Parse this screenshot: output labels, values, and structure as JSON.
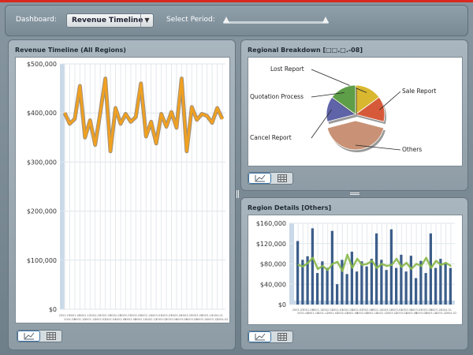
{
  "toolbar": {
    "dashboard_label": "Dashboard:",
    "dashboard_value": "Revenue Timeline",
    "period_label": "Select Period:",
    "period_range": [
      0.0,
      1.0
    ]
  },
  "panels": {
    "timeline_title": "Revenue Timeline (All Regions)",
    "breakdown_title": "Regional Breakdown [□□.□.-08]",
    "details_title": "Region Details [Others]"
  },
  "colors": {
    "accent": "#d9281f",
    "timeline_line": "#f0a020",
    "bar": "#3c5e8a",
    "details_line": "#8ab84a"
  },
  "icons": {
    "chart_view": "line-chart-icon",
    "grid_view": "grid-table-icon"
  },
  "chart_data": [
    {
      "type": "line",
      "title": "Revenue Timeline (All Regions)",
      "yticks": [
        "$500,000",
        "$400,000",
        "$300,000",
        "$200,000",
        "$100,000",
        "$0"
      ],
      "ylim": [
        0,
        500000
      ],
      "x": [
        "2001-07",
        "2001-08",
        "2001-09",
        "2001-10",
        "2001-11",
        "2001-12",
        "2002-01",
        "2002-02",
        "2002-03",
        "2002-04",
        "2002-05",
        "2002-06",
        "2002-07",
        "2002-08",
        "2002-09",
        "2002-10",
        "2002-11",
        "2002-12",
        "2003-01",
        "2003-02",
        "2003-03",
        "2003-04",
        "2003-05",
        "2003-06",
        "2003-07",
        "2003-08",
        "2003-09",
        "2003-10",
        "2003-11",
        "2003-12",
        "2004-01",
        "2004-02"
      ],
      "values": [
        400000,
        378000,
        388000,
        455000,
        350000,
        385000,
        335000,
        400000,
        470000,
        322000,
        410000,
        378000,
        398000,
        382000,
        392000,
        460000,
        352000,
        382000,
        338000,
        398000,
        372000,
        402000,
        370000,
        470000,
        322000,
        412000,
        386000,
        398000,
        394000,
        380000,
        410000,
        388000
      ],
      "grid": true
    },
    {
      "type": "pie",
      "title": "Regional Breakdown [□□.□.-08]",
      "slices": [
        {
          "label": "Lost Report",
          "value": 15,
          "color": "#d9b830"
        },
        {
          "label": "Sale Report",
          "value": 14,
          "color": "#d65a3a"
        },
        {
          "label": "Others",
          "value": 42,
          "color": "#c99276"
        },
        {
          "label": "Cancel Report",
          "value": 14,
          "color": "#5f64a8"
        },
        {
          "label": "Quotation Process",
          "value": 15,
          "color": "#5e9e48"
        }
      ]
    },
    {
      "type": "bar",
      "title": "Region Details [Others]",
      "yticks": [
        "$160,000",
        "$120,000",
        "$80,000",
        "$40,000",
        "$0"
      ],
      "ylim": [
        0,
        160000
      ],
      "categories": [
        "2001-07",
        "2001-08",
        "2001-09",
        "2001-10",
        "2001-11",
        "2001-12",
        "2002-01",
        "2002-02",
        "2002-03",
        "2002-04",
        "2002-05",
        "2002-06",
        "2002-07",
        "2002-08",
        "2002-09",
        "2002-10",
        "2002-11",
        "2002-12",
        "2003-01",
        "2003-02",
        "2003-03",
        "2003-04",
        "2003-05",
        "2003-06",
        "2003-07",
        "2003-08",
        "2003-09",
        "2003-10",
        "2003-11",
        "2003-12",
        "2004-01",
        "2004-02"
      ],
      "series": [
        {
          "values": [
            125000,
            88000,
            95000,
            150000,
            62000,
            85000,
            72000,
            145000,
            40000,
            88000,
            60000,
            104000,
            65000,
            85000,
            75000,
            90000,
            140000,
            88000,
            68000,
            148000,
            72000,
            98000,
            65000,
            96000,
            52000,
            86000,
            62000,
            140000,
            72000,
            90000,
            82000,
            72000
          ]
        },
        {
          "values": [
            78000,
            75000,
            82000,
            92000,
            70000,
            76000,
            68000,
            80000,
            84000,
            66000,
            98000,
            72000,
            90000,
            78000,
            80000,
            86000,
            72000,
            80000,
            76000,
            78000,
            90000,
            74000,
            82000,
            70000,
            80000,
            76000,
            92000,
            72000,
            86000,
            78000,
            82000,
            76000
          ]
        }
      ],
      "grid": true
    }
  ]
}
